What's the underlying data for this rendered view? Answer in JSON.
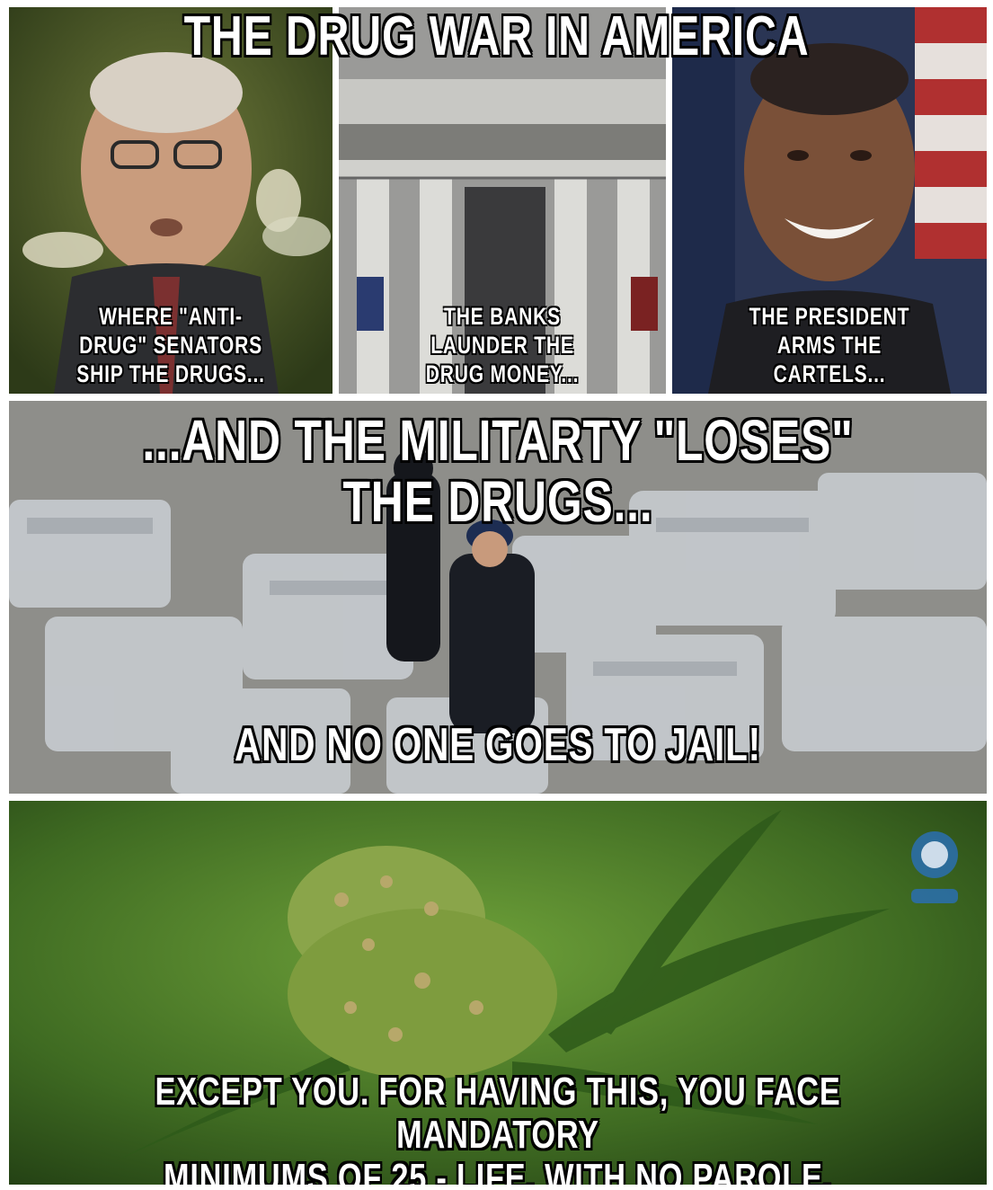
{
  "title": "THE DRUG WAR IN AMERICA",
  "panels": [
    {
      "caption_lines": [
        "WHERE \"ANTI-",
        "DRUG\" SENATORS",
        "SHIP THE DRUGS..."
      ]
    },
    {
      "caption_lines": [
        "THE BANKS",
        "LAUNDER THE",
        "DRUG MONEY..."
      ]
    },
    {
      "caption_lines": [
        "THE PRESIDENT",
        "ARMS THE",
        "CARTELS..."
      ]
    }
  ],
  "middle": {
    "top_caption": "...AND THE MILITARTY \"LOSES\" THE DRUGS...",
    "bottom_caption": "AND NO ONE GOES TO JAIL!"
  },
  "bottom": {
    "caption_lines": [
      "EXCEPT YOU. FOR HAVING THIS, YOU FACE MANDATORY",
      "MINIMUMS OF 25 - LIFE, WITH NO PAROLE."
    ]
  },
  "colors": {
    "caption_fill": "#ffffff",
    "caption_outline": "#000000",
    "background": "#ffffff"
  },
  "icons": [
    "senator-photo",
    "bank-building-photo",
    "president-photo",
    "drug-seizure-photo",
    "cannabis-plant-photo",
    "watermark-logo"
  ]
}
